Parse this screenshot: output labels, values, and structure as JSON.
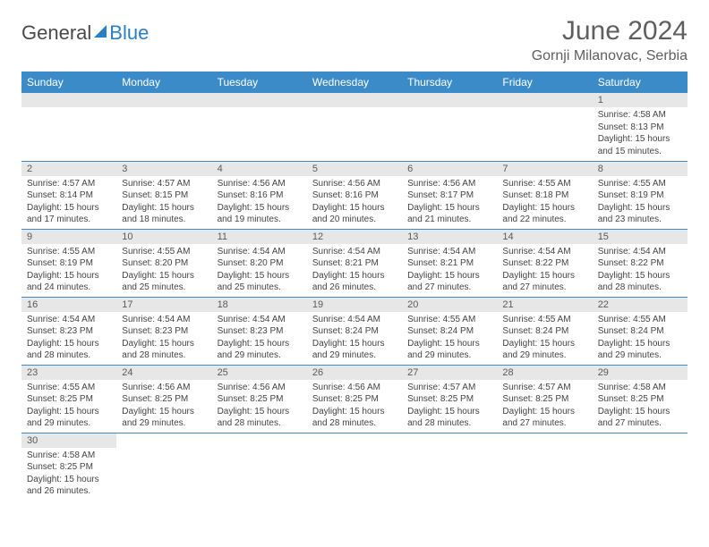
{
  "brand": {
    "part1": "General",
    "part2": "Blue"
  },
  "title": "June 2024",
  "location": "Gornji Milanovac, Serbia",
  "colors": {
    "header_bg": "#3b8bc9",
    "header_text": "#ffffff",
    "daynum_bg": "#e7e7e7",
    "border": "#3b8bc9",
    "text": "#444444",
    "title_text": "#5f5f5f",
    "brand_blue": "#2a7ec4"
  },
  "weekdays": [
    "Sunday",
    "Monday",
    "Tuesday",
    "Wednesday",
    "Thursday",
    "Friday",
    "Saturday"
  ],
  "weeks": [
    [
      null,
      null,
      null,
      null,
      null,
      null,
      {
        "d": "1",
        "sr": "Sunrise: 4:58 AM",
        "ss": "Sunset: 8:13 PM",
        "dl1": "Daylight: 15 hours",
        "dl2": "and 15 minutes."
      }
    ],
    [
      {
        "d": "2",
        "sr": "Sunrise: 4:57 AM",
        "ss": "Sunset: 8:14 PM",
        "dl1": "Daylight: 15 hours",
        "dl2": "and 17 minutes."
      },
      {
        "d": "3",
        "sr": "Sunrise: 4:57 AM",
        "ss": "Sunset: 8:15 PM",
        "dl1": "Daylight: 15 hours",
        "dl2": "and 18 minutes."
      },
      {
        "d": "4",
        "sr": "Sunrise: 4:56 AM",
        "ss": "Sunset: 8:16 PM",
        "dl1": "Daylight: 15 hours",
        "dl2": "and 19 minutes."
      },
      {
        "d": "5",
        "sr": "Sunrise: 4:56 AM",
        "ss": "Sunset: 8:16 PM",
        "dl1": "Daylight: 15 hours",
        "dl2": "and 20 minutes."
      },
      {
        "d": "6",
        "sr": "Sunrise: 4:56 AM",
        "ss": "Sunset: 8:17 PM",
        "dl1": "Daylight: 15 hours",
        "dl2": "and 21 minutes."
      },
      {
        "d": "7",
        "sr": "Sunrise: 4:55 AM",
        "ss": "Sunset: 8:18 PM",
        "dl1": "Daylight: 15 hours",
        "dl2": "and 22 minutes."
      },
      {
        "d": "8",
        "sr": "Sunrise: 4:55 AM",
        "ss": "Sunset: 8:19 PM",
        "dl1": "Daylight: 15 hours",
        "dl2": "and 23 minutes."
      }
    ],
    [
      {
        "d": "9",
        "sr": "Sunrise: 4:55 AM",
        "ss": "Sunset: 8:19 PM",
        "dl1": "Daylight: 15 hours",
        "dl2": "and 24 minutes."
      },
      {
        "d": "10",
        "sr": "Sunrise: 4:55 AM",
        "ss": "Sunset: 8:20 PM",
        "dl1": "Daylight: 15 hours",
        "dl2": "and 25 minutes."
      },
      {
        "d": "11",
        "sr": "Sunrise: 4:54 AM",
        "ss": "Sunset: 8:20 PM",
        "dl1": "Daylight: 15 hours",
        "dl2": "and 25 minutes."
      },
      {
        "d": "12",
        "sr": "Sunrise: 4:54 AM",
        "ss": "Sunset: 8:21 PM",
        "dl1": "Daylight: 15 hours",
        "dl2": "and 26 minutes."
      },
      {
        "d": "13",
        "sr": "Sunrise: 4:54 AM",
        "ss": "Sunset: 8:21 PM",
        "dl1": "Daylight: 15 hours",
        "dl2": "and 27 minutes."
      },
      {
        "d": "14",
        "sr": "Sunrise: 4:54 AM",
        "ss": "Sunset: 8:22 PM",
        "dl1": "Daylight: 15 hours",
        "dl2": "and 27 minutes."
      },
      {
        "d": "15",
        "sr": "Sunrise: 4:54 AM",
        "ss": "Sunset: 8:22 PM",
        "dl1": "Daylight: 15 hours",
        "dl2": "and 28 minutes."
      }
    ],
    [
      {
        "d": "16",
        "sr": "Sunrise: 4:54 AM",
        "ss": "Sunset: 8:23 PM",
        "dl1": "Daylight: 15 hours",
        "dl2": "and 28 minutes."
      },
      {
        "d": "17",
        "sr": "Sunrise: 4:54 AM",
        "ss": "Sunset: 8:23 PM",
        "dl1": "Daylight: 15 hours",
        "dl2": "and 28 minutes."
      },
      {
        "d": "18",
        "sr": "Sunrise: 4:54 AM",
        "ss": "Sunset: 8:23 PM",
        "dl1": "Daylight: 15 hours",
        "dl2": "and 29 minutes."
      },
      {
        "d": "19",
        "sr": "Sunrise: 4:54 AM",
        "ss": "Sunset: 8:24 PM",
        "dl1": "Daylight: 15 hours",
        "dl2": "and 29 minutes."
      },
      {
        "d": "20",
        "sr": "Sunrise: 4:55 AM",
        "ss": "Sunset: 8:24 PM",
        "dl1": "Daylight: 15 hours",
        "dl2": "and 29 minutes."
      },
      {
        "d": "21",
        "sr": "Sunrise: 4:55 AM",
        "ss": "Sunset: 8:24 PM",
        "dl1": "Daylight: 15 hours",
        "dl2": "and 29 minutes."
      },
      {
        "d": "22",
        "sr": "Sunrise: 4:55 AM",
        "ss": "Sunset: 8:24 PM",
        "dl1": "Daylight: 15 hours",
        "dl2": "and 29 minutes."
      }
    ],
    [
      {
        "d": "23",
        "sr": "Sunrise: 4:55 AM",
        "ss": "Sunset: 8:25 PM",
        "dl1": "Daylight: 15 hours",
        "dl2": "and 29 minutes."
      },
      {
        "d": "24",
        "sr": "Sunrise: 4:56 AM",
        "ss": "Sunset: 8:25 PM",
        "dl1": "Daylight: 15 hours",
        "dl2": "and 29 minutes."
      },
      {
        "d": "25",
        "sr": "Sunrise: 4:56 AM",
        "ss": "Sunset: 8:25 PM",
        "dl1": "Daylight: 15 hours",
        "dl2": "and 28 minutes."
      },
      {
        "d": "26",
        "sr": "Sunrise: 4:56 AM",
        "ss": "Sunset: 8:25 PM",
        "dl1": "Daylight: 15 hours",
        "dl2": "and 28 minutes."
      },
      {
        "d": "27",
        "sr": "Sunrise: 4:57 AM",
        "ss": "Sunset: 8:25 PM",
        "dl1": "Daylight: 15 hours",
        "dl2": "and 28 minutes."
      },
      {
        "d": "28",
        "sr": "Sunrise: 4:57 AM",
        "ss": "Sunset: 8:25 PM",
        "dl1": "Daylight: 15 hours",
        "dl2": "and 27 minutes."
      },
      {
        "d": "29",
        "sr": "Sunrise: 4:58 AM",
        "ss": "Sunset: 8:25 PM",
        "dl1": "Daylight: 15 hours",
        "dl2": "and 27 minutes."
      }
    ],
    [
      {
        "d": "30",
        "sr": "Sunrise: 4:58 AM",
        "ss": "Sunset: 8:25 PM",
        "dl1": "Daylight: 15 hours",
        "dl2": "and 26 minutes."
      },
      null,
      null,
      null,
      null,
      null,
      null
    ]
  ]
}
